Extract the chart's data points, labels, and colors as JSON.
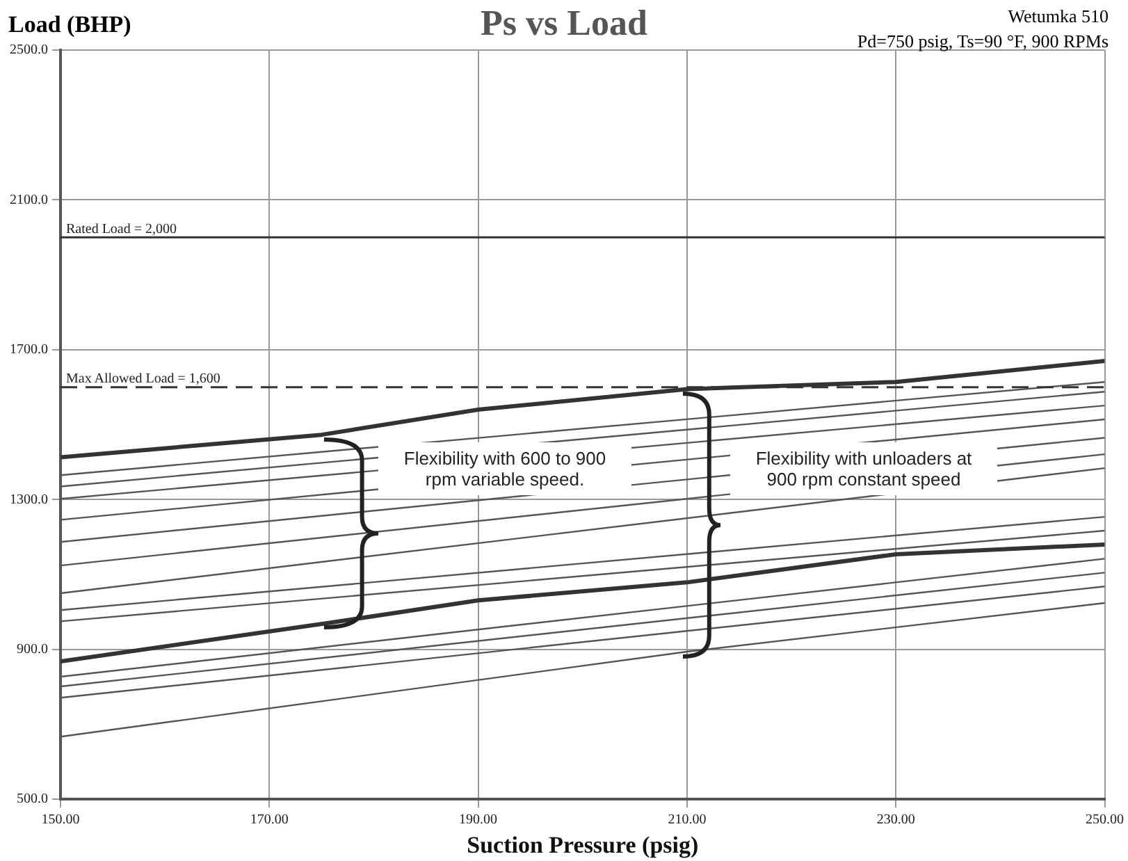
{
  "chart_data": {
    "type": "line",
    "title": "Ps vs Load",
    "subtitle": "Wetumka 510",
    "annotations": [
      "Pd=750 psig, Ts=90 °F, 900 RPMs",
      "Flexibility with 600 to 900 rpm variable speed.",
      "Flexibility with unloaders at 900 rpm constant speed"
    ],
    "xlabel": "Suction Pressure (psig)",
    "ylabel": "Load (BHP)",
    "xlim": [
      150,
      250
    ],
    "xticks": [
      {
        "value": 150,
        "label": "150.00"
      },
      {
        "value": 170,
        "label": "170.00"
      },
      {
        "value": 190,
        "label": "190.00"
      },
      {
        "value": 210,
        "label": "210.00"
      },
      {
        "value": 230,
        "label": "230.00"
      },
      {
        "value": 250,
        "label": "250.00"
      }
    ],
    "ylim": [
      500,
      2500
    ],
    "yticks": [
      {
        "value": 500,
        "label": "500.0"
      },
      {
        "value": 900,
        "label": "900.0"
      },
      {
        "value": 1300,
        "label": "1300.0"
      },
      {
        "value": 1700,
        "label": "1700.0"
      },
      {
        "value": 2100,
        "label": "2100.0"
      },
      {
        "value": 2500,
        "label": "2500.0"
      }
    ],
    "grid": true,
    "legend": false,
    "marker": "none",
    "line_style": "solid",
    "ref_lines": [
      {
        "axis": "y",
        "value": 2000,
        "label": "Rated Load = 2,000",
        "line_style": "solid",
        "color": "#333333"
      },
      {
        "axis": "y",
        "value": 1600,
        "label": "Max Allowed Load = 1,600",
        "line_style": "dashed",
        "color": "#333333"
      }
    ],
    "series": [
      {
        "color": "#333333",
        "x": [
          150,
          175,
          190,
          210,
          230,
          250
        ],
        "values": [
          1413,
          1473,
          1540,
          1595,
          1614,
          1670
        ]
      },
      {
        "color": "#333333",
        "x": [
          150,
          176,
          190,
          210,
          230,
          250
        ],
        "values": [
          868,
          972,
          1031,
          1079,
          1154,
          1180
        ]
      },
      {
        "color": "#555555",
        "x": [
          150,
          210,
          250
        ],
        "values": [
          667,
          894,
          1024
        ]
      },
      {
        "color": "#555555",
        "x": [
          150,
          250
        ],
        "values": [
          1365,
          1614
        ]
      },
      {
        "color": "#555555",
        "x": [
          150,
          250
        ],
        "values": [
          1335,
          1588
        ]
      },
      {
        "color": "#555555",
        "x": [
          150,
          250
        ],
        "values": [
          1302,
          1551
        ]
      },
      {
        "color": "#555555",
        "x": [
          150,
          250
        ],
        "values": [
          1246,
          1514
        ]
      },
      {
        "color": "#555555",
        "x": [
          150,
          250
        ],
        "values": [
          1187,
          1465
        ]
      },
      {
        "color": "#555555",
        "x": [
          150,
          250
        ],
        "values": [
          1124,
          1421
        ]
      },
      {
        "color": "#555555",
        "x": [
          150,
          250
        ],
        "values": [
          1050,
          1384
        ]
      },
      {
        "color": "#555555",
        "x": [
          150,
          250
        ],
        "values": [
          1005,
          1254
        ]
      },
      {
        "color": "#555555",
        "x": [
          150,
          250
        ],
        "values": [
          975,
          1217
        ]
      },
      {
        "color": "#555555",
        "x": [
          150,
          250
        ],
        "values": [
          827,
          1142
        ]
      },
      {
        "color": "#555555",
        "x": [
          150,
          250
        ],
        "values": [
          801,
          1105
        ]
      },
      {
        "color": "#555555",
        "x": [
          150,
          250
        ],
        "values": [
          771,
          1068
        ]
      }
    ]
  }
}
